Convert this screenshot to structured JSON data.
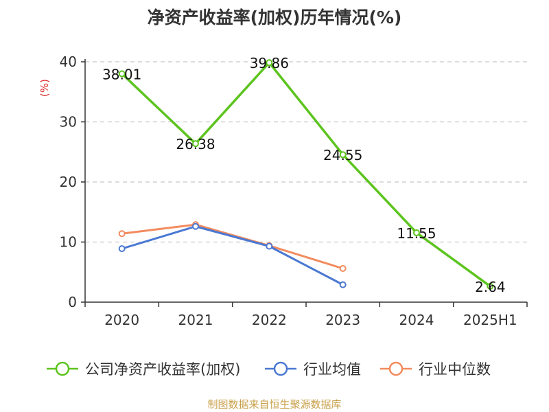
{
  "chart_data": {
    "type": "line",
    "title": "净资产收益率(加权)历年情况(%)",
    "ylabel": "(%)",
    "xlabel": "",
    "categories": [
      "2020",
      "2021",
      "2022",
      "2023",
      "2024",
      "2025H1"
    ],
    "ylim": [
      0,
      40
    ],
    "yticks": [
      0,
      10,
      20,
      30,
      40
    ],
    "grid": true,
    "legend_position": "bottom",
    "series": [
      {
        "name": "公司净资产收益率(加权)",
        "color": "#5cc41e",
        "values": [
          38.01,
          26.38,
          39.86,
          24.55,
          11.55,
          2.64
        ],
        "labels": [
          "38.01",
          "26.38",
          "39.86",
          "24.55",
          "11.55",
          "2.64"
        ]
      },
      {
        "name": "行业均值",
        "color": "#4a78d2",
        "values": [
          8.9,
          12.6,
          9.3,
          2.9,
          null,
          null
        ]
      },
      {
        "name": "行业中位数",
        "color": "#f28b5e",
        "values": [
          11.4,
          12.9,
          9.4,
          5.6,
          null,
          null
        ]
      }
    ],
    "source": "制图数据来自恒生聚源数据库"
  }
}
